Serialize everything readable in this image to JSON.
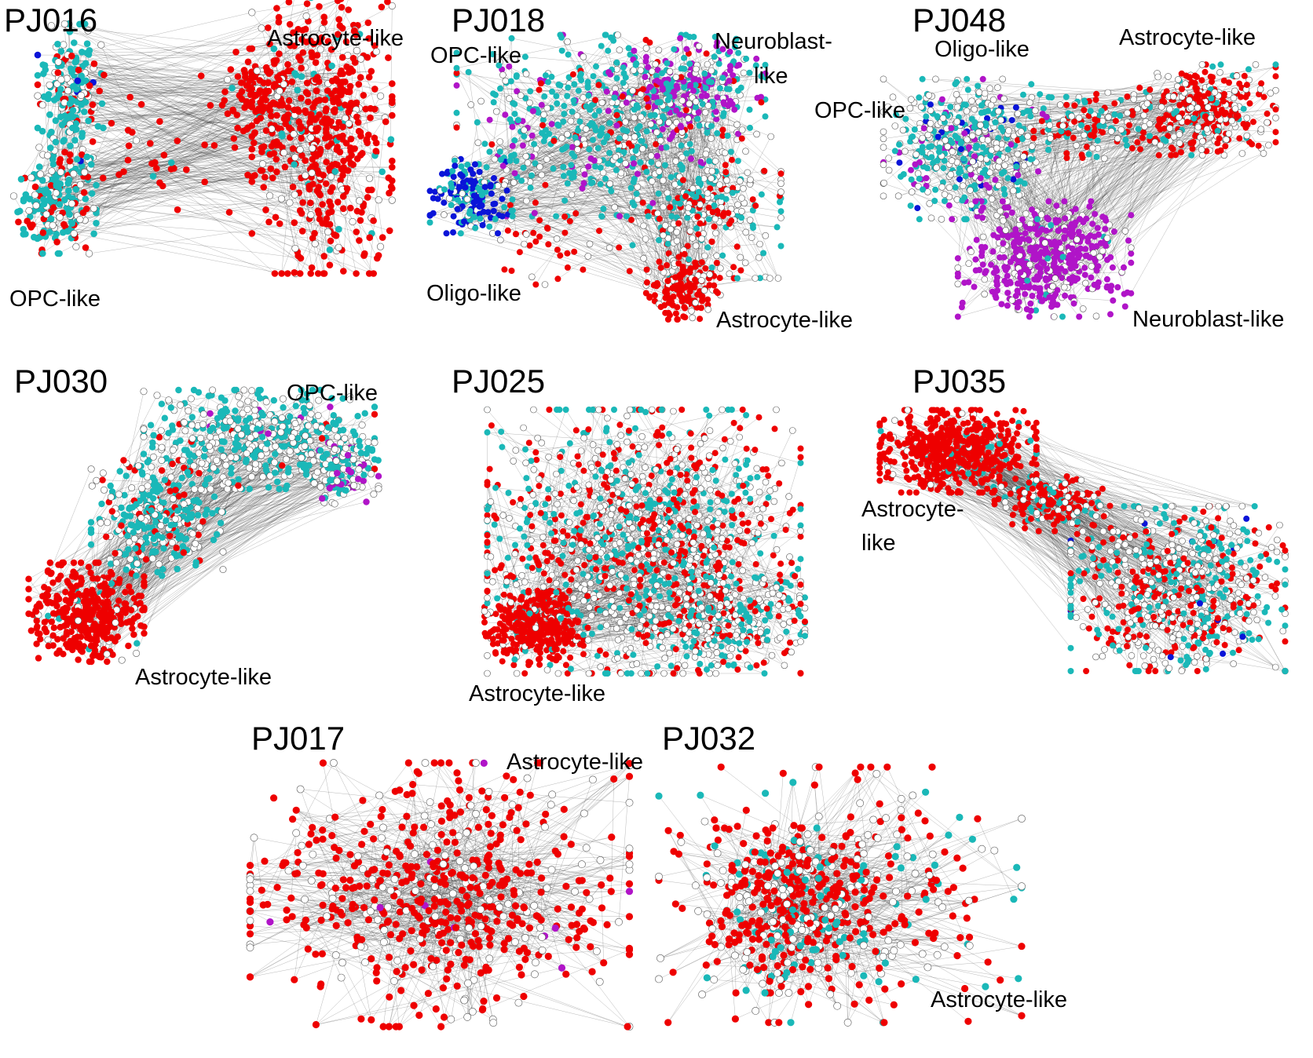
{
  "colors": {
    "astrocyte": "#ee0000",
    "opc": "#1ab8b8",
    "oligo": "#0a14d8",
    "neuroblast": "#b014c8",
    "unassigned": "#ffffff",
    "edge": "#333333",
    "node_outline": "#555555"
  },
  "panels": [
    {
      "id": "PJ016",
      "title": "PJ016",
      "labels": [
        {
          "text": "Astrocyte-like"
        },
        {
          "text": "OPC-like"
        }
      ]
    },
    {
      "id": "PJ018",
      "title": "PJ018",
      "labels": [
        {
          "text": "OPC-like"
        },
        {
          "text": "Neuroblast-"
        },
        {
          "text": "like"
        },
        {
          "text": "Oligo-like"
        },
        {
          "text": "Astrocyte-like"
        }
      ]
    },
    {
      "id": "PJ048",
      "title": "PJ048",
      "labels": [
        {
          "text": "Oligo-like"
        },
        {
          "text": "Astrocyte-like"
        },
        {
          "text": "OPC-like"
        },
        {
          "text": "Neuroblast-like"
        }
      ]
    },
    {
      "id": "PJ030",
      "title": "PJ030",
      "labels": [
        {
          "text": "OPC-like"
        },
        {
          "text": "Astrocyte-like"
        }
      ]
    },
    {
      "id": "PJ025",
      "title": "PJ025",
      "labels": [
        {
          "text": "Astrocyte-like"
        }
      ]
    },
    {
      "id": "PJ035",
      "title": "PJ035",
      "labels": [
        {
          "text": "Astrocyte-"
        },
        {
          "text": "like"
        }
      ]
    },
    {
      "id": "PJ017",
      "title": "PJ017",
      "labels": [
        {
          "text": "Astrocyte-like"
        }
      ]
    },
    {
      "id": "PJ032",
      "title": "PJ032",
      "labels": [
        {
          "text": "Astrocyte-like"
        }
      ]
    }
  ]
}
